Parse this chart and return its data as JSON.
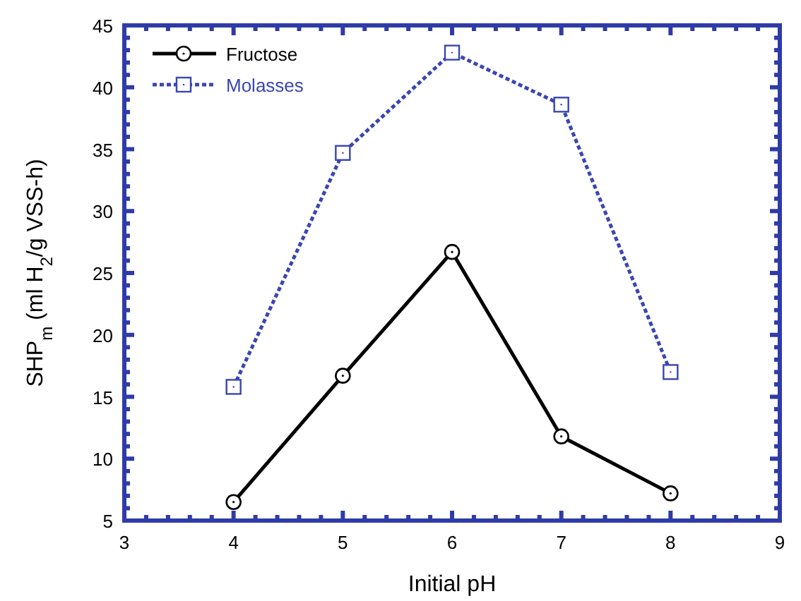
{
  "chart_data": {
    "type": "line",
    "xlabel": "Initial pH",
    "ylabel": "SHP$_{m}$  (ml H$_{2}$/g VSS-h)",
    "x": [
      4,
      5,
      6,
      7,
      8
    ],
    "series": [
      {
        "name": "Fructose",
        "color": "#000000",
        "values": [
          6.5,
          16.7,
          26.7,
          11.8,
          7.2
        ],
        "marker": "circle",
        "line_style": "solid"
      },
      {
        "name": "Molasses",
        "color": "#3a46b0",
        "values": [
          15.8,
          34.7,
          42.8,
          38.6,
          17.0
        ],
        "marker": "square",
        "line_style": "dotted"
      }
    ],
    "xlim": [
      3,
      9
    ],
    "xticks": [
      3,
      4,
      5,
      6,
      7,
      8,
      9
    ],
    "ylim": [
      5,
      45
    ],
    "yticks": [
      5,
      10,
      15,
      20,
      25,
      30,
      35,
      40,
      45
    ],
    "grid": false,
    "legend": "top left"
  }
}
